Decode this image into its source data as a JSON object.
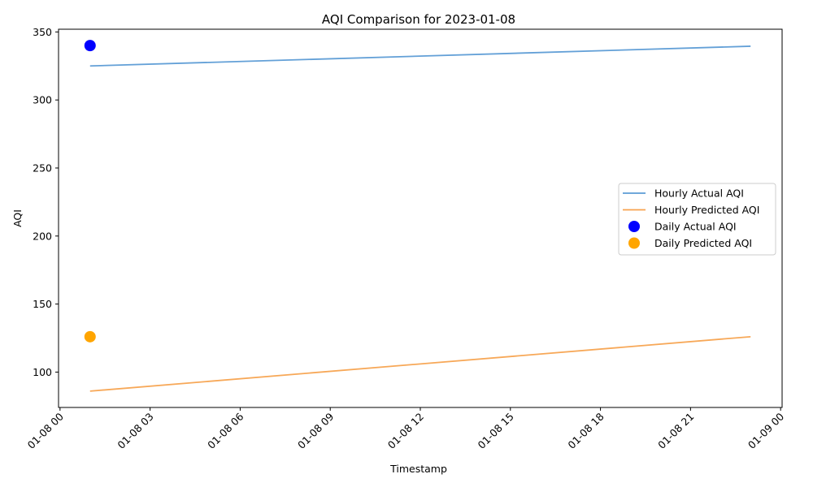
{
  "chart_data": {
    "type": "line",
    "title": "AQI Comparison for 2023-01-08",
    "xlabel": "Timestamp",
    "ylabel": "AQI",
    "x_ticks": [
      "01-08 00",
      "01-08 03",
      "01-08 06",
      "01-08 09",
      "01-08 12",
      "01-08 15",
      "01-08 18",
      "01-08 21",
      "01-09 00"
    ],
    "x_tick_hours": [
      0,
      3,
      6,
      9,
      12,
      15,
      18,
      21,
      24
    ],
    "y_ticks": [
      100,
      150,
      200,
      250,
      300,
      350
    ],
    "xlim_hours": [
      -0.05,
      24.05
    ],
    "ylim": [
      74,
      352
    ],
    "grid": false,
    "legend_position": "center-right",
    "series": [
      {
        "name": "Hourly Actual AQI",
        "kind": "line",
        "color": "#5b9bd5",
        "x_hours": [
          1,
          23
        ],
        "y": [
          325,
          339.5
        ]
      },
      {
        "name": "Hourly Predicted AQI",
        "kind": "line",
        "color": "#f7a34f",
        "x_hours": [
          1,
          23
        ],
        "y": [
          86,
          126
        ]
      },
      {
        "name": "Daily Actual AQI",
        "kind": "scatter",
        "color": "#0000ff",
        "x_hours": [
          1
        ],
        "y": [
          340
        ]
      },
      {
        "name": "Daily Predicted AQI",
        "kind": "scatter",
        "color": "#ffa500",
        "x_hours": [
          1
        ],
        "y": [
          126
        ]
      }
    ]
  }
}
